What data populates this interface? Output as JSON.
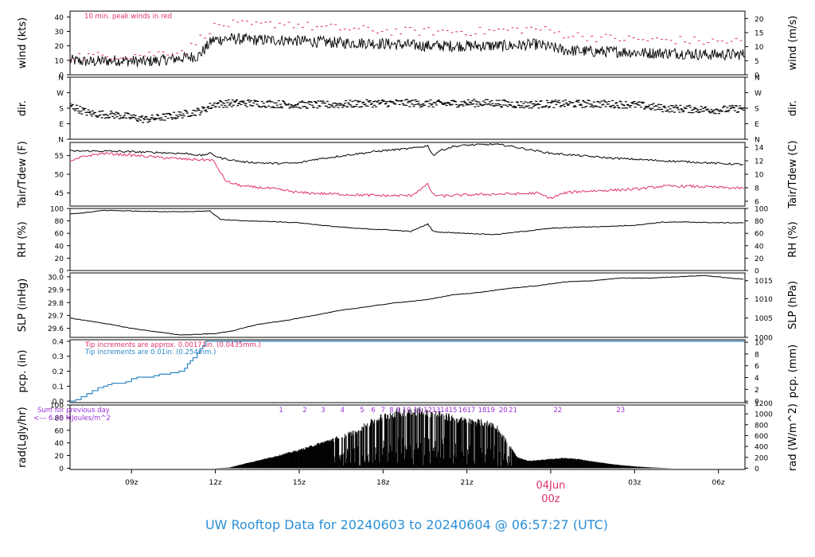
{
  "figure_title": "UW Rooftop Data for 20240603  to  20240604 @ 06:57:27  (UTC)",
  "colors": {
    "black": "#000000",
    "red": "#e0336b",
    "blue": "#2e86c1",
    "purple": "#9b30d9",
    "title": "#2b8fd6"
  },
  "x_axis": {
    "range_hours": [
      6.8,
      30.95
    ],
    "ticks": [
      {
        "h": 9,
        "label": "09z"
      },
      {
        "h": 12,
        "label": "12z"
      },
      {
        "h": 15,
        "label": "15z"
      },
      {
        "h": 18,
        "label": "18z"
      },
      {
        "h": 21,
        "label": "21z"
      },
      {
        "h": 24,
        "label": "04Jun",
        "label2": "00z",
        "highlight": true
      },
      {
        "h": 27,
        "label": "03z"
      },
      {
        "h": 30,
        "label": "06z"
      }
    ]
  },
  "chart_data": [
    {
      "id": "wind",
      "type": "line",
      "ylabel": "wind (kts)",
      "ylabel_right": "wind (m/s)",
      "ylim": [
        0,
        44
      ],
      "yticks": [
        0,
        10,
        20,
        30,
        40
      ],
      "right_ticks": [
        {
          "v": 0,
          "label": "0"
        },
        {
          "v": 9.72,
          "label": "5"
        },
        {
          "v": 19.44,
          "label": "10"
        },
        {
          "v": 29.16,
          "label": "15"
        },
        {
          "v": 38.88,
          "label": "20"
        }
      ],
      "annotation": "10 min. peak winds in red",
      "series": [
        {
          "key": "speed",
          "color": "#000000",
          "x": [
            6.8,
            7.5,
            8.5,
            9.5,
            10.5,
            11.4,
            11.9,
            12.5,
            13.5,
            14.5,
            15.5,
            16.5,
            17.5,
            18.5,
            19.5,
            20.5,
            21.5,
            22.5,
            23.5,
            24.5,
            25.5,
            26.5,
            27.5,
            28.5,
            29.5,
            30.5,
            30.95
          ],
          "y": [
            10,
            9,
            10,
            9,
            11,
            13,
            24,
            25,
            24,
            24,
            23,
            22,
            22,
            21,
            20,
            20,
            20,
            20,
            21,
            17,
            16,
            16,
            15,
            15,
            14,
            14,
            14
          ],
          "noise": 4
        },
        {
          "key": "peak",
          "color": "#e0336b",
          "x": [
            6.8,
            8,
            9.5,
            11,
            11.9,
            12.5,
            13.5,
            14.5,
            15.5,
            16.5,
            17.5,
            18.5,
            19.5,
            20.5,
            21.5,
            22.5,
            23.5,
            24.5,
            25.5,
            26.5,
            27.5,
            28.5,
            29.5,
            30.95
          ],
          "y": [
            13,
            13,
            14,
            17,
            33,
            35,
            34,
            36,
            33,
            32,
            31,
            30,
            30,
            30,
            30,
            31,
            32,
            28,
            26,
            25,
            24,
            24,
            23,
            23
          ],
          "noise": 3
        }
      ]
    },
    {
      "id": "dir",
      "type": "scatter",
      "ylabel": "dir.",
      "ylabel_right": "dir.",
      "ylim": [
        0,
        360
      ],
      "yticks": [
        0,
        90,
        180,
        270,
        360
      ],
      "ytick_labels": [
        "N",
        "E",
        "S",
        "W",
        "N"
      ],
      "series": [
        {
          "key": "direction",
          "color": "#000000",
          "x": [
            6.8,
            7.5,
            8.5,
            9.5,
            10.5,
            11.5,
            12,
            13,
            14,
            15,
            16,
            17,
            18,
            19,
            20,
            21,
            22,
            23,
            24,
            25,
            26,
            27,
            28,
            29,
            30,
            30.95
          ],
          "y": [
            195,
            150,
            140,
            115,
            135,
            165,
            205,
            210,
            205,
            200,
            200,
            205,
            210,
            210,
            205,
            210,
            210,
            200,
            205,
            205,
            205,
            200,
            180,
            175,
            170,
            180
          ],
          "noise": 22
        }
      ]
    },
    {
      "id": "temp",
      "type": "line",
      "ylabel": "Tair/Tdew (F)",
      "ylabel_right": "Tair/Tdew (C)",
      "ylim": [
        41.5,
        58.5
      ],
      "yticks": [
        45,
        50,
        55
      ],
      "right_ticks": [
        {
          "v": 42.8,
          "label": "6"
        },
        {
          "v": 46.4,
          "label": "8"
        },
        {
          "v": 50,
          "label": "10"
        },
        {
          "v": 53.6,
          "label": "12"
        },
        {
          "v": 57.2,
          "label": "14"
        }
      ],
      "series": [
        {
          "key": "Tair",
          "color": "#000000",
          "x": [
            6.8,
            8,
            9,
            10,
            11,
            11.5,
            11.8,
            12.2,
            13,
            14,
            15,
            15.5,
            16,
            17,
            18,
            19,
            19.6,
            19.8,
            20,
            20.5,
            21,
            22,
            22.5,
            23,
            24,
            25,
            26,
            27,
            28,
            29,
            30,
            30.95
          ],
          "y": [
            56.2,
            56.2,
            56.0,
            55.8,
            55.5,
            55.0,
            55.6,
            54.3,
            53.3,
            52.9,
            53.0,
            53.9,
            54.4,
            55.4,
            56.3,
            56.9,
            57.6,
            55.0,
            56.2,
            57.4,
            57.8,
            58.0,
            57.6,
            56.9,
            55.6,
            55.0,
            54.4,
            54.0,
            53.6,
            53.3,
            52.9,
            52.6
          ],
          "noise": 0.25
        },
        {
          "key": "Tdew",
          "color": "#e0336b",
          "x": [
            6.8,
            7.3,
            8,
            9,
            10,
            11,
            11.9,
            12.4,
            13,
            14,
            15,
            16,
            17,
            18,
            19,
            19.6,
            19.8,
            20.1,
            21,
            22,
            23,
            23.5,
            24,
            24.5,
            25,
            26,
            27,
            28,
            29,
            30,
            30.95
          ],
          "y": [
            53.3,
            54.8,
            55.6,
            55.1,
            54.5,
            54.0,
            53.8,
            48.0,
            46.8,
            46.2,
            45.1,
            44.8,
            44.5,
            44.3,
            44.3,
            47.3,
            44.5,
            44.2,
            44.5,
            44.7,
            44.8,
            45.0,
            43.6,
            45.0,
            45.4,
            45.7,
            46.0,
            46.8,
            46.8,
            46.5,
            46.2
          ],
          "noise": 0.35
        }
      ]
    },
    {
      "id": "rh",
      "type": "line",
      "ylabel": "RH (%)",
      "ylabel_right": "RH (%)",
      "ylim": [
        0,
        100
      ],
      "yticks": [
        0,
        20,
        40,
        60,
        80,
        100
      ],
      "right_ticks": [
        {
          "v": 0,
          "label": "0"
        },
        {
          "v": 20,
          "label": "20"
        },
        {
          "v": 40,
          "label": "40"
        },
        {
          "v": 60,
          "label": "60"
        },
        {
          "v": 80,
          "label": "80"
        },
        {
          "v": 100,
          "label": "100"
        }
      ],
      "series": [
        {
          "key": "RH",
          "color": "#000000",
          "x": [
            6.8,
            7.5,
            8,
            9,
            10,
            11,
            11.8,
            12.2,
            13,
            14,
            15,
            16,
            17,
            18,
            19,
            19.6,
            19.8,
            20,
            21,
            22,
            23,
            24,
            25,
            26,
            27,
            28,
            29,
            30,
            30.95
          ],
          "y": [
            91,
            94,
            97,
            96,
            95,
            95,
            96,
            82,
            80,
            79,
            77,
            72,
            68,
            66,
            63,
            75,
            63,
            62,
            60,
            58,
            63,
            68,
            70,
            71,
            73,
            78,
            78,
            77,
            77
          ],
          "noise": 0.6
        }
      ]
    },
    {
      "id": "slp",
      "type": "line",
      "ylabel": "SLP (inHg)",
      "ylabel_right": "SLP (hPa)",
      "ylim": [
        29.53,
        30.03
      ],
      "yticks": [
        29.6,
        29.7,
        29.8,
        29.9,
        30.0
      ],
      "ytick_labels": [
        "29.6",
        "29.7",
        "29.8",
        "29.9",
        "30.0"
      ],
      "right_ticks": [
        {
          "v": 29.53,
          "label": "1000"
        },
        {
          "v": 29.68,
          "label": "1005"
        },
        {
          "v": 29.83,
          "label": "1010"
        },
        {
          "v": 29.97,
          "label": "1015"
        }
      ],
      "series": [
        {
          "key": "SLP",
          "color": "#000000",
          "x": [
            6.8,
            8,
            9,
            10,
            10.7,
            11,
            12,
            12.6,
            13.5,
            14.5,
            15.5,
            16.5,
            17.5,
            18.5,
            19.5,
            20.5,
            21.5,
            22.5,
            23.5,
            24.5,
            25.5,
            26.5,
            27.5,
            28.5,
            29.5,
            30.4,
            30.95
          ],
          "y": [
            29.68,
            29.64,
            29.6,
            29.57,
            29.55,
            29.55,
            29.56,
            29.58,
            29.63,
            29.66,
            29.7,
            29.74,
            29.77,
            29.8,
            29.82,
            29.86,
            29.88,
            29.91,
            29.93,
            29.96,
            29.97,
            29.99,
            29.99,
            30.0,
            30.01,
            29.99,
            29.98
          ],
          "noise": 0.002
        }
      ]
    },
    {
      "id": "pcp",
      "type": "line",
      "ylabel": "pcp. (in)",
      "ylabel_right": "pcp. (mm)",
      "ylim": [
        -0.01,
        0.41
      ],
      "yticks": [
        0.0,
        0.1,
        0.2,
        0.3,
        0.4
      ],
      "ytick_labels": [
        "0.0",
        "0.1",
        "0.2",
        "0.3",
        "0.4"
      ],
      "right_ticks": [
        {
          "v": 0,
          "label": "0"
        },
        {
          "v": 0.0787,
          "label": "2"
        },
        {
          "v": 0.1575,
          "label": "4"
        },
        {
          "v": 0.2362,
          "label": "6"
        },
        {
          "v": 0.315,
          "label": "8"
        },
        {
          "v": 0.3937,
          "label": "10"
        }
      ],
      "annotations": [
        {
          "text": "Tip increments are approx. 0.00171in. (0.0435mm.)",
          "color": "#e0336b"
        },
        {
          "text": "Tip increments are 0.01in. (0.254mm.)",
          "color": "#2e86c1"
        }
      ],
      "series": [
        {
          "key": "accum",
          "color": "#2e86c1",
          "x": [
            6.8,
            7.0,
            7.2,
            7.4,
            7.6,
            7.8,
            8.0,
            8.15,
            8.3,
            8.6,
            8.8,
            9.0,
            9.2,
            9.6,
            9.8,
            10.0,
            10.2,
            10.4,
            10.7,
            10.9,
            11.0,
            11.1,
            11.2,
            11.35,
            11.45,
            11.55,
            11.65,
            30.95
          ],
          "y": [
            0.0,
            0.01,
            0.03,
            0.05,
            0.07,
            0.09,
            0.1,
            0.11,
            0.12,
            0.12,
            0.13,
            0.15,
            0.16,
            0.16,
            0.17,
            0.18,
            0.18,
            0.19,
            0.2,
            0.22,
            0.25,
            0.27,
            0.29,
            0.32,
            0.35,
            0.37,
            0.4,
            0.4
          ]
        }
      ]
    },
    {
      "id": "rad",
      "type": "bar",
      "ylabel": "rad(Lgly/hr)",
      "ylabel_right": "rad (W/m^2)",
      "ylim": [
        -2,
        100
      ],
      "yticks": [
        0,
        20,
        40,
        60,
        80,
        100
      ],
      "right_ticks": [
        {
          "v": 0,
          "label": "0"
        },
        {
          "v": 17.2,
          "label": "200"
        },
        {
          "v": 34.4,
          "label": "400"
        },
        {
          "v": 51.6,
          "label": "600"
        },
        {
          "v": 68.8,
          "label": "800"
        },
        {
          "v": 86.0,
          "label": "1000"
        },
        {
          "v": 103.2,
          "label": "1200"
        }
      ],
      "annotations": [
        {
          "text": "Sum for previous day",
          "color": "#9b30d9"
        },
        {
          "text": "<--- 6.03 MJoules/m^2",
          "color": "#9b30d9"
        }
      ],
      "hour_labels": [
        {
          "h": 14.35,
          "label": "1"
        },
        {
          "h": 15.2,
          "label": "2"
        },
        {
          "h": 15.85,
          "label": "3"
        },
        {
          "h": 16.55,
          "label": "4"
        },
        {
          "h": 17.25,
          "label": "5"
        },
        {
          "h": 17.65,
          "label": "6"
        },
        {
          "h": 18.0,
          "label": "7"
        },
        {
          "h": 18.3,
          "label": "8"
        },
        {
          "h": 18.55,
          "label": "9"
        },
        {
          "h": 18.85,
          "label": "10"
        },
        {
          "h": 19.25,
          "label": "11"
        },
        {
          "h": 19.6,
          "label": "12"
        },
        {
          "h": 19.9,
          "label": "13"
        },
        {
          "h": 20.2,
          "label": "14"
        },
        {
          "h": 20.5,
          "label": "15"
        },
        {
          "h": 20.85,
          "label": "16"
        },
        {
          "h": 21.15,
          "label": "17"
        },
        {
          "h": 21.55,
          "label": "18"
        },
        {
          "h": 21.85,
          "label": "19"
        },
        {
          "h": 22.3,
          "label": "20"
        },
        {
          "h": 22.65,
          "label": "21"
        },
        {
          "h": 24.25,
          "label": "22"
        },
        {
          "h": 26.5,
          "label": "23"
        }
      ],
      "series": [
        {
          "key": "solar",
          "color": "#000000",
          "x": [
            11.9,
            12.5,
            13,
            14,
            15,
            16,
            17,
            17.5,
            18,
            18.5,
            19,
            19.5,
            20,
            20.5,
            21,
            21.5,
            22,
            22.5,
            22.8,
            23.2,
            24,
            24.5,
            25,
            25.5,
            26.3,
            27,
            27.7,
            28.4
          ],
          "y": [
            0,
            1,
            7,
            18,
            30,
            45,
            62,
            76,
            88,
            95,
            98,
            96,
            92,
            85,
            80,
            78,
            74,
            40,
            18,
            12,
            15,
            17,
            15,
            11,
            6,
            3,
            1,
            0
          ]
        }
      ]
    }
  ]
}
